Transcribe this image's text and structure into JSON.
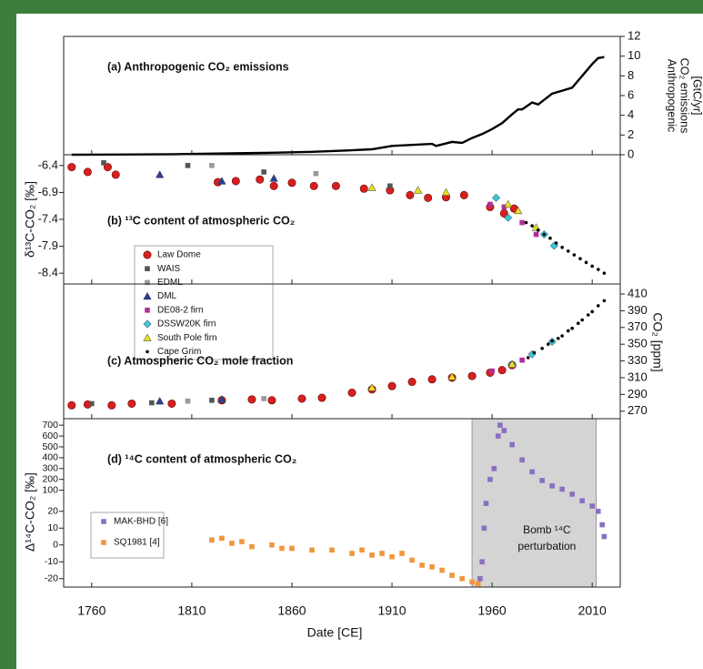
{
  "chart_data": [
    {
      "type": "line",
      "title": "(a) Anthropogenic CO₂ emissions",
      "ylabel": [
        "Anthropogenic",
        "CO₂ emissions",
        "[GtC/yr]"
      ],
      "xlim": [
        1746,
        2024
      ],
      "ylim": [
        0,
        12
      ],
      "yticks": [
        0,
        2,
        4,
        6,
        8,
        10,
        12
      ],
      "yaxis": "right",
      "series": [
        {
          "name": "Emissions",
          "color": "#000000",
          "x": [
            1750,
            1800,
            1850,
            1870,
            1890,
            1900,
            1910,
            1920,
            1930,
            1932,
            1940,
            1945,
            1950,
            1955,
            1960,
            1965,
            1970,
            1973,
            1975,
            1980,
            1983,
            1990,
            1995,
            2000,
            2005,
            2010,
            2013,
            2016
          ],
          "values": [
            0,
            0.05,
            0.2,
            0.3,
            0.45,
            0.55,
            0.9,
            1.0,
            1.1,
            0.9,
            1.3,
            1.2,
            1.7,
            2.1,
            2.6,
            3.2,
            4.1,
            4.6,
            4.6,
            5.3,
            5.1,
            6.2,
            6.5,
            6.8,
            8.0,
            9.2,
            9.8,
            9.9
          ]
        }
      ]
    },
    {
      "type": "scatter",
      "title": "(b) ¹³C content of atmospheric CO₂",
      "ylabel": "δ¹³C-CO₂ [‰]",
      "xlim": [
        1746,
        2024
      ],
      "ylim": [
        -8.6,
        -6.2
      ],
      "yticks": [
        -6.4,
        -6.9,
        -7.4,
        -7.9,
        -8.4
      ],
      "yaxis": "left",
      "legend": "lower left",
      "series": [
        {
          "name": "Law Dome",
          "color": "#d62020",
          "marker": "circle",
          "x": [
            1750,
            1758,
            1768,
            1772,
            1823,
            1832,
            1844,
            1851,
            1860,
            1871,
            1882,
            1896,
            1909,
            1919,
            1928,
            1937,
            1946,
            1959,
            1966,
            1971
          ],
          "values": [
            -6.43,
            -6.52,
            -6.43,
            -6.57,
            -6.71,
            -6.69,
            -6.66,
            -6.78,
            -6.72,
            -6.78,
            -6.78,
            -6.83,
            -6.86,
            -6.95,
            -7.0,
            -6.99,
            -6.95,
            -7.17,
            -7.29,
            -7.2
          ]
        },
        {
          "name": "WAIS",
          "color": "#555555",
          "marker": "square",
          "x": [
            1766,
            1808,
            1846,
            1909
          ],
          "values": [
            -6.35,
            -6.4,
            -6.52,
            -6.78
          ]
        },
        {
          "name": "EDML",
          "color": "#999999",
          "marker": "square",
          "x": [
            1820,
            1872
          ],
          "values": [
            -6.4,
            -6.55
          ]
        },
        {
          "name": "DML",
          "color": "#2a3f9a",
          "marker": "triangle",
          "x": [
            1794,
            1825,
            1851
          ],
          "values": [
            -6.57,
            -6.69,
            -6.64
          ]
        },
        {
          "name": "DE08-2 firn",
          "color": "#b0309a",
          "marker": "square",
          "x": [
            1959,
            1966,
            1975,
            1982
          ],
          "values": [
            -7.12,
            -7.17,
            -7.46,
            -7.68
          ]
        },
        {
          "name": "DSSW20K firn",
          "color": "#3cc8d0",
          "marker": "diamond",
          "x": [
            1962,
            1968,
            1986,
            1991
          ],
          "values": [
            -7.0,
            -7.37,
            -7.68,
            -7.89
          ]
        },
        {
          "name": "South Pole firn",
          "color": "#e8e020",
          "marker": "triangle",
          "x": [
            1900,
            1923,
            1937,
            1968,
            1973,
            1982
          ],
          "values": [
            -6.81,
            -6.86,
            -6.9,
            -7.12,
            -7.24,
            -7.55
          ]
        },
        {
          "name": "Cape Grim",
          "color": "#000000",
          "marker": "dot",
          "x": [
            1977,
            1980,
            1983,
            1986,
            1989,
            1992,
            1995,
            1998,
            2001,
            2004,
            2007,
            2010,
            2013,
            2016
          ],
          "values": [
            -7.46,
            -7.52,
            -7.6,
            -7.68,
            -7.75,
            -7.84,
            -7.92,
            -7.99,
            -8.06,
            -8.13,
            -8.2,
            -8.27,
            -8.33,
            -8.4
          ]
        }
      ]
    },
    {
      "type": "scatter",
      "title": "(c) Atmospheric CO₂ mole fraction",
      "ylabel": "CO₂ [ppm]",
      "xlim": [
        1746,
        2024
      ],
      "ylim": [
        261,
        422
      ],
      "yticks": [
        270,
        290,
        310,
        330,
        350,
        370,
        390,
        410
      ],
      "yaxis": "right",
      "series": [
        {
          "color": "#d62020",
          "marker": "circle",
          "x": [
            1750,
            1758,
            1770,
            1780,
            1800,
            1825,
            1840,
            1850,
            1865,
            1875,
            1890,
            1900,
            1910,
            1920,
            1930,
            1940,
            1950,
            1959,
            1965,
            1970
          ],
          "values": [
            277,
            278,
            277,
            279,
            279,
            283,
            284,
            283,
            285,
            286,
            292,
            296,
            300,
            305,
            308,
            310,
            312,
            316,
            319,
            325
          ]
        },
        {
          "color": "#555555",
          "marker": "square",
          "x": [
            1760,
            1790,
            1820
          ],
          "values": [
            279,
            280,
            283
          ]
        },
        {
          "color": "#999999",
          "marker": "square",
          "x": [
            1808,
            1846
          ],
          "values": [
            282,
            285
          ]
        },
        {
          "color": "#2a3f9a",
          "marker": "triangle",
          "x": [
            1794,
            1825
          ],
          "values": [
            282,
            284
          ]
        },
        {
          "color": "#b0309a",
          "marker": "square",
          "x": [
            1960,
            1975
          ],
          "values": [
            318,
            331
          ]
        },
        {
          "color": "#3cc8d0",
          "marker": "diamond",
          "x": [
            1970,
            1980,
            1990
          ],
          "values": [
            326,
            338,
            353
          ]
        },
        {
          "color": "#e8e020",
          "marker": "triangle",
          "x": [
            1900,
            1940,
            1970
          ],
          "values": [
            298,
            311,
            326
          ]
        },
        {
          "color": "#000000",
          "marker": "dot",
          "x": [
            1978,
            1981,
            1985,
            1988,
            1990,
            1993,
            1995,
            1998,
            2000,
            2003,
            2005,
            2008,
            2010,
            2013,
            2016
          ],
          "values": [
            334,
            340,
            345,
            350,
            354,
            357,
            360,
            366,
            369,
            375,
            379,
            385,
            389,
            396,
            402
          ]
        }
      ]
    },
    {
      "type": "scatter",
      "title": "(d) ¹⁴C content of atmospheric CO₂",
      "ylabel": "Δ¹⁴C-CO₂ [‰]",
      "xlabel": "Date [CE]",
      "xlim": [
        1746,
        2024
      ],
      "xticks": [
        1760,
        1810,
        1860,
        1910,
        1960,
        2010
      ],
      "ylim": [
        -25,
        760
      ],
      "ybreak": [
        20,
        100
      ],
      "yaxis": "left",
      "legend": "lower left",
      "yticks": [
        700,
        600,
        500,
        400,
        300,
        200,
        100,
        20,
        10,
        0,
        -10,
        -20
      ],
      "span": [
        1950,
        2012
      ],
      "annotation": [
        "Bomb ¹⁴C",
        "perturbation"
      ],
      "series": [
        {
          "name": "MAK-BHD [6]",
          "color": "#8a6fc0",
          "marker": "square",
          "x": [
            1954,
            1955,
            1956,
            1957,
            1959,
            1961,
            1963,
            1964,
            1966,
            1970,
            1975,
            1980,
            1985,
            1990,
            1995,
            2000,
            2005,
            2010,
            2013,
            2015,
            2016
          ],
          "values": [
            -20,
            -10,
            10,
            50,
            200,
            300,
            600,
            700,
            650,
            520,
            380,
            270,
            190,
            140,
            110,
            85,
            60,
            40,
            20,
            12,
            5
          ]
        },
        {
          "name": "SQ1981 [4]",
          "color": "#f0963c",
          "marker": "square",
          "x": [
            1820,
            1825,
            1830,
            1835,
            1840,
            1850,
            1855,
            1860,
            1870,
            1880,
            1890,
            1895,
            1900,
            1905,
            1910,
            1915,
            1920,
            1925,
            1930,
            1935,
            1940,
            1945,
            1950,
            1953
          ],
          "values": [
            3,
            4,
            1,
            2,
            -1,
            0,
            -2,
            -2,
            -3,
            -3,
            -5,
            -3,
            -6,
            -5,
            -7,
            -5,
            -9,
            -12,
            -13,
            -15,
            -18,
            -20,
            -22,
            -23
          ]
        }
      ]
    }
  ]
}
